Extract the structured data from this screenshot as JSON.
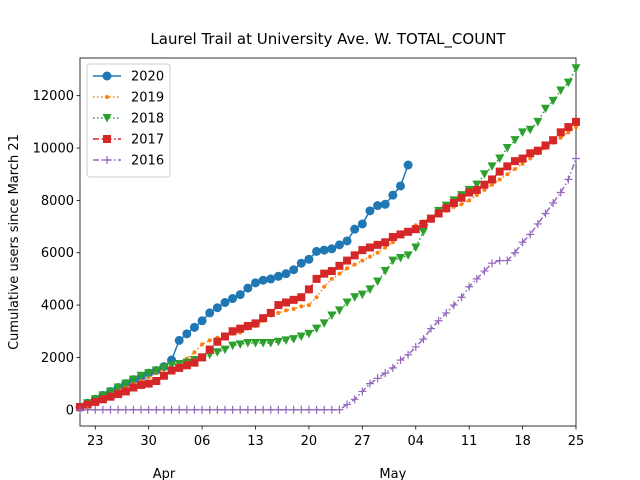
{
  "chart_data": {
    "type": "line",
    "title": "Laurel Trail at University Ave. W. TOTAL_COUNT",
    "y_label": "Cumulative users since March 21",
    "x": [
      0,
      1,
      2,
      3,
      4,
      5,
      6,
      7,
      8,
      9,
      10,
      11,
      12,
      13,
      14,
      15,
      16,
      17,
      18,
      19,
      20,
      21,
      22,
      23,
      24,
      25,
      26,
      27,
      28,
      29,
      30,
      31,
      32,
      33,
      34,
      35,
      36,
      37,
      38,
      39,
      40,
      41,
      42,
      43,
      44,
      45,
      46,
      47,
      48,
      49,
      50,
      51,
      52,
      53,
      54,
      55,
      56,
      57,
      58,
      59,
      60,
      61,
      62,
      63,
      64,
      65
    ],
    "xlim": [
      0,
      65
    ],
    "xticks": [
      {
        "value": 2,
        "label": "23"
      },
      {
        "value": 9,
        "label": "30"
      },
      {
        "value": 16,
        "label": "06"
      },
      {
        "value": 23,
        "label": "13"
      },
      {
        "value": 30,
        "label": "20"
      },
      {
        "value": 37,
        "label": "27"
      },
      {
        "value": 44,
        "label": "04"
      },
      {
        "value": 51,
        "label": "11"
      },
      {
        "value": 58,
        "label": "18"
      },
      {
        "value": 65,
        "label": "25"
      }
    ],
    "month_labels": [
      {
        "value": 11,
        "label": "Apr"
      },
      {
        "value": 41,
        "label": "May"
      }
    ],
    "ylim": [
      -620,
      13440
    ],
    "yticks": [
      0,
      2000,
      4000,
      6000,
      8000,
      10000,
      12000
    ],
    "legend": "upper left",
    "series": [
      {
        "name": "2020",
        "color": "#1f77b4",
        "marker": "o",
        "linestyle": "solid",
        "values": [
          100,
          250,
          400,
          550,
          700,
          850,
          1000,
          1150,
          1250,
          1400,
          1500,
          1650,
          1900,
          2650,
          2900,
          3150,
          3400,
          3700,
          3900,
          4100,
          4250,
          4400,
          4650,
          4850,
          4950,
          5000,
          5100,
          5200,
          5350,
          5600,
          5750,
          6050,
          6100,
          6150,
          6300,
          6450,
          6900,
          7100,
          7600,
          7800,
          7850,
          8200,
          8550,
          9350,
          null,
          null,
          null,
          null,
          null,
          null,
          null,
          null,
          null,
          null,
          null,
          null,
          null,
          null,
          null,
          null,
          null,
          null,
          null,
          null,
          null,
          null
        ]
      },
      {
        "name": "2019",
        "color": "#ff7f0e",
        "marker": ".",
        "linestyle": "dotted",
        "values": [
          100,
          200,
          300,
          450,
          600,
          750,
          850,
          1000,
          1100,
          1250,
          1400,
          1550,
          1700,
          1800,
          1950,
          2200,
          2500,
          2650,
          2750,
          2800,
          2900,
          2950,
          3100,
          3200,
          3400,
          3600,
          3700,
          3800,
          3850,
          3950,
          4000,
          4300,
          4700,
          5000,
          5200,
          5400,
          5550,
          5700,
          5850,
          6000,
          6200,
          6400,
          6650,
          6850,
          7050,
          7200,
          7350,
          7450,
          7600,
          7750,
          7850,
          8000,
          8200,
          8400,
          8600,
          8800,
          9000,
          9200,
          9400,
          9600,
          9800,
          10000,
          10200,
          10400,
          10600,
          10800
        ]
      },
      {
        "name": "2018",
        "color": "#2ca02c",
        "marker": "v",
        "linestyle": "dotted",
        "values": [
          100,
          250,
          400,
          550,
          700,
          850,
          1000,
          1150,
          1300,
          1400,
          1500,
          1600,
          1700,
          1750,
          1800,
          1900,
          2000,
          2100,
          2200,
          2300,
          2450,
          2500,
          2550,
          2550,
          2550,
          2550,
          2600,
          2650,
          2700,
          2800,
          2900,
          3100,
          3300,
          3600,
          3800,
          4100,
          4300,
          4400,
          4600,
          4900,
          5300,
          5700,
          5800,
          5900,
          6200,
          6800,
          7300,
          7600,
          7800,
          8000,
          8200,
          8400,
          8600,
          9000,
          9300,
          9600,
          10000,
          10300,
          10600,
          10700,
          11000,
          11500,
          11800,
          12200,
          12500,
          13050
        ]
      },
      {
        "name": "2017",
        "color": "#d62728",
        "marker": "s",
        "linestyle": "dashdot",
        "values": [
          100,
          200,
          300,
          400,
          500,
          600,
          700,
          850,
          950,
          1000,
          1100,
          1300,
          1500,
          1600,
          1700,
          1800,
          2000,
          2300,
          2600,
          2800,
          3000,
          3100,
          3200,
          3300,
          3500,
          3700,
          4000,
          4100,
          4200,
          4300,
          4600,
          5000,
          5200,
          5300,
          5500,
          5700,
          5900,
          6100,
          6200,
          6300,
          6400,
          6600,
          6700,
          6800,
          6900,
          7100,
          7300,
          7500,
          7700,
          7900,
          8100,
          8300,
          8400,
          8600,
          8800,
          9100,
          9300,
          9500,
          9600,
          9800,
          9900,
          10100,
          10300,
          10600,
          10800,
          11000
        ]
      },
      {
        "name": "2016",
        "color": "#9467bd",
        "marker": "+",
        "linestyle": "dashdot",
        "values": [
          0,
          0,
          0,
          0,
          0,
          0,
          0,
          0,
          0,
          0,
          0,
          0,
          0,
          0,
          0,
          0,
          0,
          0,
          0,
          0,
          0,
          0,
          0,
          0,
          0,
          0,
          0,
          0,
          0,
          0,
          0,
          0,
          0,
          0,
          0,
          200,
          400,
          700,
          1000,
          1200,
          1400,
          1600,
          1900,
          2100,
          2400,
          2700,
          3100,
          3400,
          3700,
          4000,
          4300,
          4700,
          5000,
          5300,
          5600,
          5700,
          5700,
          6000,
          6400,
          6700,
          7100,
          7500,
          7900,
          8300,
          8800,
          9600
        ]
      }
    ]
  }
}
